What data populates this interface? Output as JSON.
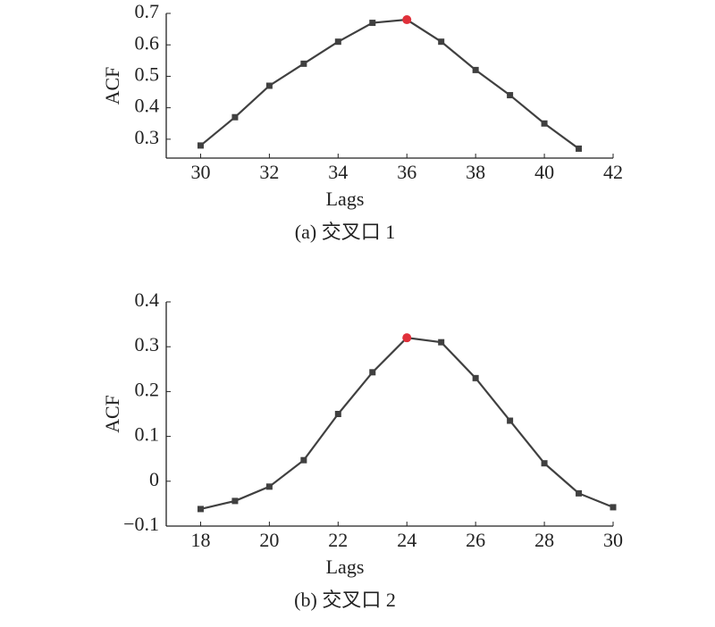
{
  "chart_data": [
    {
      "type": "line",
      "caption": "(a) 交叉口 1",
      "xlabel": "Lags",
      "ylabel": "ACF",
      "x": [
        30,
        31,
        32,
        33,
        34,
        35,
        36,
        37,
        38,
        39,
        40,
        41
      ],
      "values": [
        0.28,
        0.37,
        0.47,
        0.54,
        0.61,
        0.67,
        0.68,
        0.61,
        0.52,
        0.44,
        0.35,
        0.27
      ],
      "color": "#404040",
      "highlight_x": 36,
      "highlight_color": "#e0303a",
      "xlim": [
        29,
        42
      ],
      "xticks": [
        30,
        32,
        34,
        36,
        38,
        40,
        42
      ],
      "ylim": [
        0.24,
        0.7
      ],
      "yticks": [
        0.3,
        0.4,
        0.5,
        0.6,
        0.7
      ]
    },
    {
      "type": "line",
      "caption": "(b) 交叉口 2",
      "xlabel": "Lags",
      "ylabel": "ACF",
      "x": [
        18,
        19,
        20,
        21,
        22,
        23,
        24,
        25,
        26,
        27,
        28,
        29,
        30
      ],
      "values": [
        -0.062,
        -0.044,
        -0.012,
        0.047,
        0.15,
        0.243,
        0.32,
        0.31,
        0.23,
        0.135,
        0.04,
        -0.027,
        -0.058
      ],
      "color": "#404040",
      "highlight_x": 24,
      "highlight_color": "#e0303a",
      "xlim": [
        17,
        30
      ],
      "xticks": [
        18,
        20,
        22,
        24,
        26,
        28,
        30
      ],
      "ylim": [
        -0.1,
        0.4
      ],
      "yticks": [
        {
          "value": -0.1,
          "label": "−0.1"
        },
        0,
        0.1,
        0.2,
        0.3,
        0.4
      ]
    }
  ]
}
